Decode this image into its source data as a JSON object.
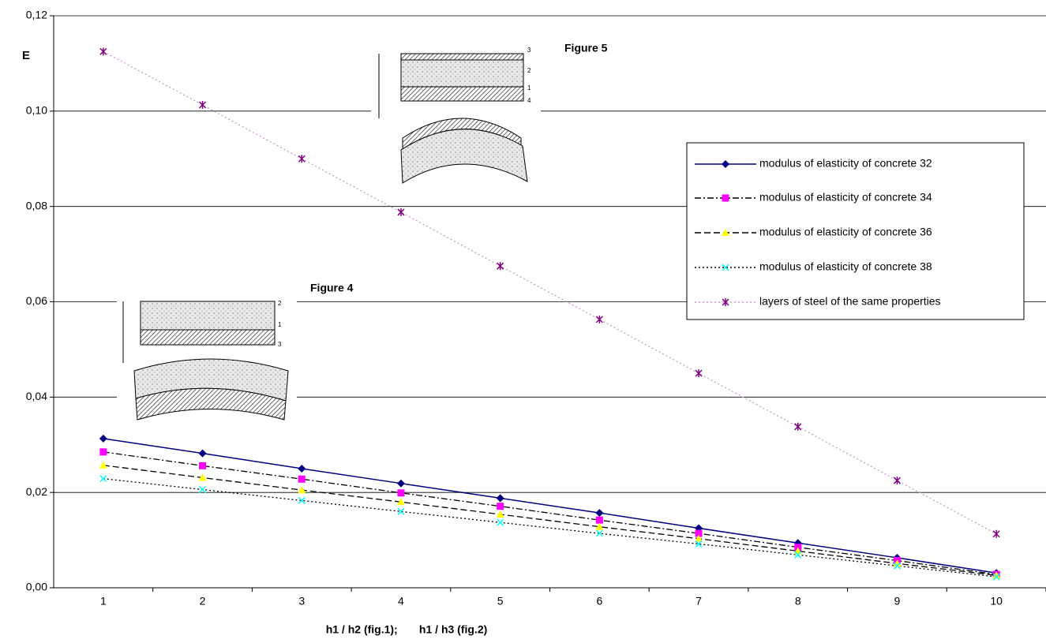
{
  "chart_data": {
    "type": "line",
    "y_label": "E",
    "x_label": "h1 / h2 (fig.1);       h1 / h3 (fig.2)",
    "annotations": [
      "Figure 5",
      "Figure 4"
    ],
    "figure5_labels": [
      "3",
      "2",
      "1",
      "4"
    ],
    "figure4_labels": [
      "2",
      "1",
      "3"
    ],
    "categories": [
      "1",
      "2",
      "3",
      "4",
      "5",
      "6",
      "7",
      "8",
      "9",
      "10"
    ],
    "ylim": [
      0,
      0.12
    ],
    "yticks": [
      {
        "value": 0,
        "label": "0,00"
      },
      {
        "value": 0.02,
        "label": "0,02"
      },
      {
        "value": 0.04,
        "label": "0,04"
      },
      {
        "value": 0.06,
        "label": "0,06"
      },
      {
        "value": 0.08,
        "label": "0,08"
      },
      {
        "value": 0.1,
        "label": "0,10"
      },
      {
        "value": 0.12,
        "label": "0,12"
      }
    ],
    "grid": true,
    "legend": "right",
    "series": [
      {
        "name": "modulus of elasticity of concrete 32",
        "color": "#000080",
        "line_color": "#000080",
        "marker": "diamond",
        "dash": "solid",
        "values": [
          0.0313,
          0.0282,
          0.025,
          0.0219,
          0.0188,
          0.0157,
          0.0125,
          0.0094,
          0.0063,
          0.0031
        ]
      },
      {
        "name": "modulus of elasticity of concrete 34",
        "color": "#ff00ff",
        "line_color": "#000000",
        "marker": "square",
        "dash": "dashdot",
        "values": [
          0.0285,
          0.0256,
          0.0228,
          0.0199,
          0.0171,
          0.0142,
          0.0114,
          0.0085,
          0.0057,
          0.0028
        ]
      },
      {
        "name": "modulus of elasticity of concrete 36",
        "color": "#ffff00",
        "line_color": "#000000",
        "marker": "triangle",
        "dash": "dash",
        "values": [
          0.0257,
          0.0231,
          0.0205,
          0.018,
          0.0154,
          0.0128,
          0.0103,
          0.0077,
          0.0051,
          0.0026
        ]
      },
      {
        "name": "modulus of elasticity of concrete 38",
        "color": "#00ffff",
        "line_color": "#000000",
        "marker": "x",
        "dash": "dot",
        "values": [
          0.0229,
          0.0206,
          0.0183,
          0.016,
          0.0137,
          0.0114,
          0.0092,
          0.0069,
          0.0046,
          0.0023
        ]
      },
      {
        "name": "layers of steel of the same properties",
        "color": "#800080",
        "line_color": "#cc99cc",
        "marker": "star",
        "dash": "dot",
        "values": [
          0.1125,
          0.1013,
          0.09,
          0.0788,
          0.0675,
          0.0563,
          0.045,
          0.0338,
          0.0225,
          0.0113
        ]
      }
    ]
  }
}
